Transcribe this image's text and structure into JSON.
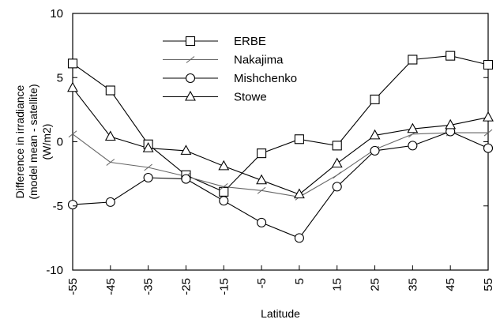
{
  "chart_data": {
    "type": "line",
    "x": [
      -55,
      -45,
      -35,
      -25,
      -15,
      -5,
      5,
      15,
      25,
      35,
      45,
      55
    ],
    "x_tick_labels": [
      "-55",
      "-45",
      "-35",
      "-25",
      "-15",
      "-5",
      "5",
      "15",
      "25",
      "35",
      "45",
      "55"
    ],
    "xlabel": "Latitude",
    "ylabel_lines": [
      "Difference in irradiance",
      "(model mean - satellite)",
      "(W/m2)"
    ],
    "ylim": [
      -10,
      10
    ],
    "y_ticks": [
      10,
      5,
      0,
      -5,
      -10
    ],
    "y_tick_labels": [
      "10",
      "5",
      "0",
      "-5",
      "-10"
    ],
    "grid": false,
    "legend_position": "top-center",
    "series": [
      {
        "name": "ERBE",
        "marker": "square",
        "values": [
          6.1,
          4.0,
          -0.2,
          -2.6,
          -3.9,
          -0.9,
          0.2,
          -0.3,
          3.3,
          6.4,
          6.7,
          6.0
        ]
      },
      {
        "name": "Nakajima",
        "marker": "tick",
        "values": [
          0.6,
          -1.6,
          -2.0,
          -2.7,
          -3.5,
          -3.8,
          -4.3,
          -2.6,
          -0.6,
          0.6,
          0.7,
          0.7
        ]
      },
      {
        "name": "Mishchenko",
        "marker": "circle",
        "values": [
          -4.9,
          -4.7,
          -2.8,
          -2.9,
          -4.6,
          -6.3,
          -7.5,
          -3.5,
          -0.7,
          -0.3,
          0.8,
          -0.5
        ]
      },
      {
        "name": "Stowe",
        "marker": "triangle",
        "values": [
          4.2,
          0.4,
          -0.5,
          -0.7,
          -1.9,
          -3.0,
          -4.1,
          -1.7,
          0.5,
          1.0,
          1.3,
          1.9
        ]
      }
    ]
  }
}
